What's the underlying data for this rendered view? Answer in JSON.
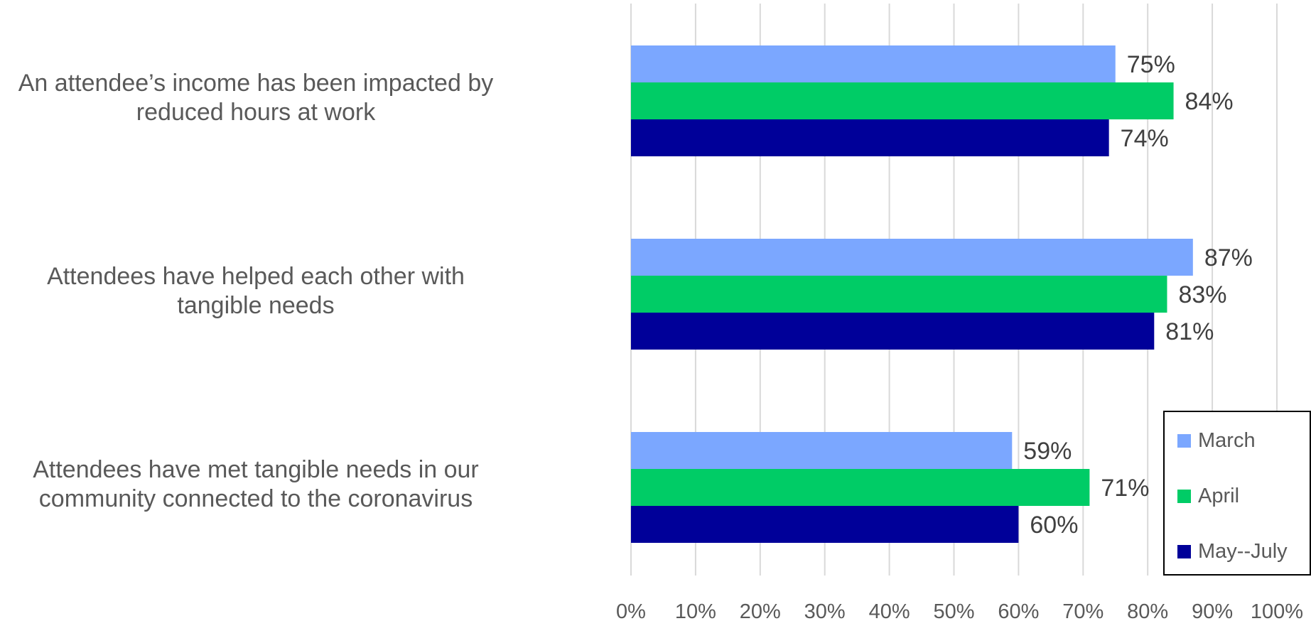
{
  "chart_data": {
    "type": "bar",
    "orientation": "horizontal",
    "categories": [
      "An attendee’s income has been impacted by reduced hours at work",
      "Attendees have helped each other with tangible needs",
      "Attendees have met tangible needs in our community connected to the coronavirus"
    ],
    "series": [
      {
        "name": "March",
        "color": "#7BA7FF",
        "values": [
          75,
          87,
          59
        ],
        "labels": [
          "75%",
          "87%",
          "59%"
        ]
      },
      {
        "name": "April",
        "color": "#00CC66",
        "values": [
          84,
          83,
          71
        ],
        "labels": [
          "84%",
          "83%",
          "71%"
        ]
      },
      {
        "name": "May--July",
        "color": "#000099",
        "values": [
          74,
          81,
          60
        ],
        "labels": [
          "74%",
          "81%",
          "60%"
        ]
      }
    ],
    "xlim": [
      0,
      100
    ],
    "xticks": [
      0,
      10,
      20,
      30,
      40,
      50,
      60,
      70,
      80,
      90,
      100
    ],
    "xtick_labels": [
      "0%",
      "10%",
      "20%",
      "30%",
      "40%",
      "50%",
      "60%",
      "70%",
      "80%",
      "90%",
      "100%"
    ],
    "grid": true,
    "legend_position": "bottom-right",
    "title": "",
    "xlabel": "",
    "ylabel": ""
  },
  "labels": {
    "category_lines": [
      [
        "An attendee’s income has been impacted by",
        "reduced hours at work"
      ],
      [
        "Attendees have helped each other with",
        "tangible needs"
      ],
      [
        "Attendees have met tangible needs in our",
        "community connected to the coronavirus"
      ]
    ]
  },
  "legend": {
    "items": [
      {
        "label": "March",
        "color": "#7BA7FF"
      },
      {
        "label": "April",
        "color": "#00CC66"
      },
      {
        "label": "May--July",
        "color": "#000099"
      }
    ]
  }
}
